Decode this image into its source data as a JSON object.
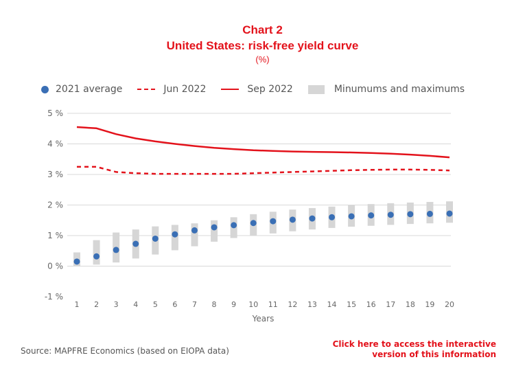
{
  "chart_data": {
    "type": "line",
    "title": "Chart 2",
    "subtitle": "United States: risk-free yield curve",
    "unit": "(%)",
    "xlabel": "Years",
    "ylabel": "",
    "x": [
      1,
      2,
      3,
      4,
      5,
      6,
      7,
      8,
      9,
      10,
      11,
      12,
      13,
      14,
      15,
      16,
      17,
      18,
      19,
      20
    ],
    "ylim": [
      -1,
      5
    ],
    "yticks": [
      -1,
      0,
      1,
      2,
      3,
      4,
      5
    ],
    "ytick_labels": [
      "-1 %",
      "0 %",
      "1 %",
      "2 %",
      "3 %",
      "4 %",
      "5 %"
    ],
    "grid": true,
    "legend_position": "top-left",
    "series": [
      {
        "name": "2021 average",
        "style": "dots",
        "color": "#3a6fb5",
        "values": [
          0.15,
          0.32,
          0.53,
          0.73,
          0.9,
          1.04,
          1.17,
          1.27,
          1.34,
          1.41,
          1.47,
          1.52,
          1.56,
          1.6,
          1.63,
          1.66,
          1.68,
          1.7,
          1.71,
          1.72
        ]
      },
      {
        "name": "Jun 2022",
        "style": "dashed",
        "color": "#e3121b",
        "values": [
          3.25,
          3.25,
          3.08,
          3.04,
          3.02,
          3.02,
          3.02,
          3.02,
          3.02,
          3.04,
          3.06,
          3.08,
          3.1,
          3.12,
          3.14,
          3.15,
          3.16,
          3.16,
          3.15,
          3.13
        ]
      },
      {
        "name": "Sep 2022",
        "style": "solid",
        "color": "#e3121b",
        "values": [
          4.55,
          4.51,
          4.32,
          4.18,
          4.08,
          4.0,
          3.93,
          3.87,
          3.83,
          3.79,
          3.77,
          3.75,
          3.74,
          3.73,
          3.72,
          3.7,
          3.68,
          3.65,
          3.61,
          3.56
        ]
      },
      {
        "name": "Minumums and maximums",
        "style": "range",
        "color": "#d6d6d6",
        "low": [
          0.0,
          0.05,
          0.12,
          0.25,
          0.38,
          0.52,
          0.65,
          0.8,
          0.92,
          1.0,
          1.07,
          1.14,
          1.2,
          1.25,
          1.29,
          1.32,
          1.35,
          1.38,
          1.4,
          1.42
        ],
        "high": [
          0.45,
          0.85,
          1.1,
          1.2,
          1.3,
          1.35,
          1.4,
          1.5,
          1.6,
          1.7,
          1.78,
          1.85,
          1.9,
          1.95,
          1.99,
          2.03,
          2.06,
          2.08,
          2.1,
          2.12
        ]
      }
    ]
  },
  "source": "Source: MAPFRE Economics (based on EIOPA data)",
  "link_line1": "Click here to access the interactive",
  "link_line2": "version of this information"
}
